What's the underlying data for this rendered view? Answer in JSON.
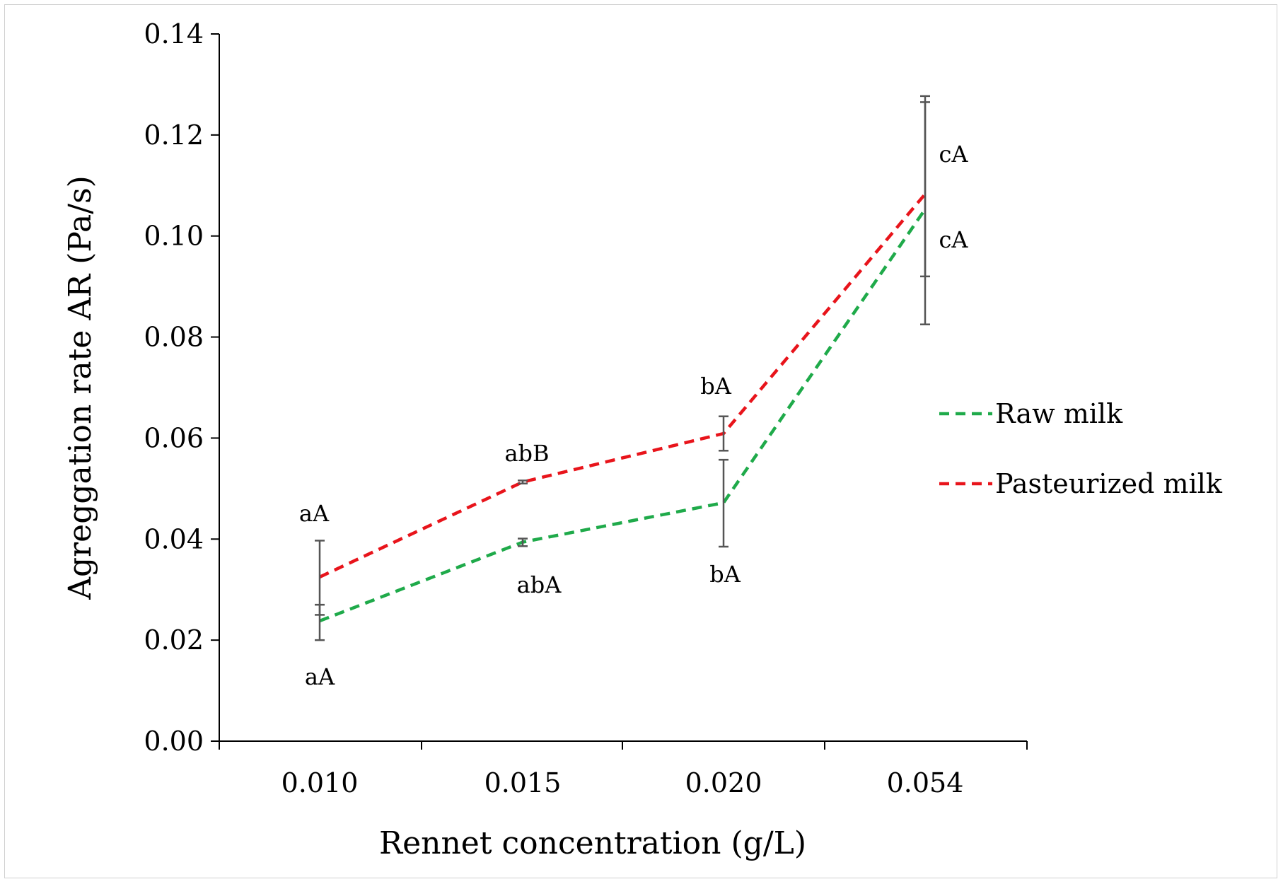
{
  "chart_data": {
    "type": "line",
    "title": "",
    "xlabel": "Rennet concentration (g/L)",
    "ylabel": "Agreggation rate AR (Pa/s)",
    "categories": [
      "0.010",
      "0.015",
      "0.020",
      "0.054"
    ],
    "ylim": [
      0,
      0.14
    ],
    "yticks": [
      "0.00",
      "0.02",
      "0.04",
      "0.06",
      "0.08",
      "0.10",
      "0.12",
      "0.14"
    ],
    "grid": false,
    "legend_position": "right",
    "series": [
      {
        "name": "Raw milk",
        "color": "#1faa4a",
        "style": "dashed",
        "values": [
          0.0238,
          0.0394,
          0.0472,
          0.1053
        ],
        "err_low": [
          0.02,
          0.0386,
          0.0385,
          0.0825
        ],
        "err_high": [
          0.027,
          0.0401,
          0.0557,
          0.1265
        ],
        "labels": [
          "aA",
          "abA",
          "bA",
          "cA"
        ]
      },
      {
        "name": "Pasteurized milk",
        "color": "#e8141b",
        "style": "dashed",
        "values": [
          0.0325,
          0.0513,
          0.0609,
          0.1083
        ],
        "err_low": [
          0.025,
          0.051,
          0.0575,
          0.092
        ],
        "err_high": [
          0.0397,
          0.0516,
          0.0643,
          0.1277
        ],
        "labels": [
          "aA",
          "abB",
          "bA",
          "cA"
        ]
      }
    ],
    "error_bar_color": "#555555"
  }
}
